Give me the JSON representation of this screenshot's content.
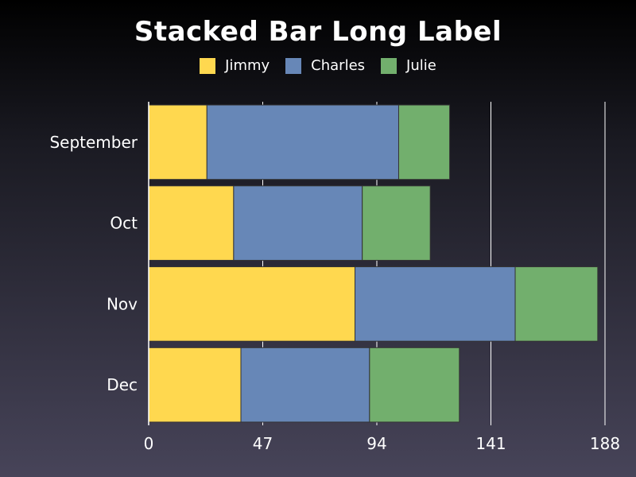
{
  "chart_data": {
    "type": "bar",
    "orientation": "horizontal",
    "stacked": true,
    "title": "Stacked Bar Long Label",
    "categories": [
      "September",
      "Oct",
      "Nov",
      "Dec"
    ],
    "series": [
      {
        "name": "Jimmy",
        "color": "#ffd84f",
        "values": [
          24,
          35,
          85,
          38
        ]
      },
      {
        "name": "Charles",
        "color": "#6787b7",
        "values": [
          79,
          53,
          66,
          53
        ]
      },
      {
        "name": "Julie",
        "color": "#72af6d",
        "values": [
          21,
          28,
          34,
          37
        ]
      }
    ],
    "xlim": [
      0,
      188
    ],
    "xticks": [
      "0",
      "47",
      "94",
      "141",
      "188"
    ],
    "grid": true,
    "legend_position": "top"
  },
  "colors": {
    "axis": "#ffffff",
    "grid": "#ffffff",
    "bar_border": "#333333"
  }
}
